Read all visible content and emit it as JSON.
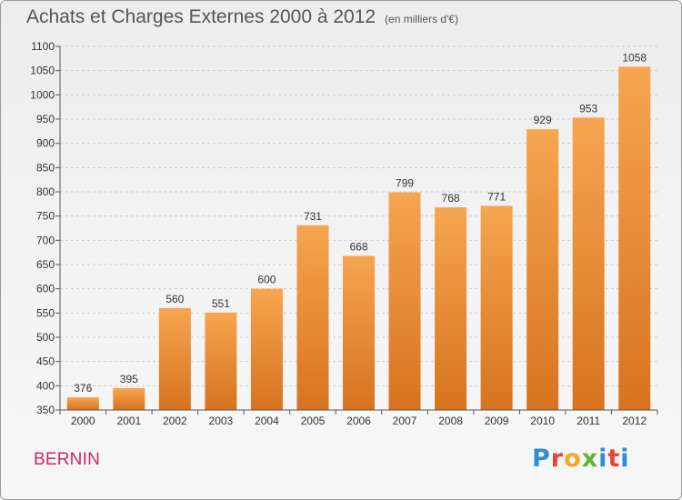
{
  "header": {
    "title": "Achats et Charges Externes 2000 à 2012",
    "subtitle": "(en milliers d'€)"
  },
  "commune": "BERNIN",
  "logo": {
    "text": "Proxiti",
    "letter_colors": [
      "#2e8ed3",
      "#e6443a",
      "#f5a623",
      "#5bb53c",
      "#2e8ed3",
      "#e6443a",
      "#2e8ed3"
    ]
  },
  "colors": {
    "bar_top": "#f6a550",
    "bar_bottom": "#d7731f",
    "axis_text": "#333333",
    "grid": "#cccccc"
  },
  "chart_data": {
    "type": "bar",
    "categories": [
      "2000",
      "2001",
      "2002",
      "2003",
      "2004",
      "2005",
      "2006",
      "2007",
      "2008",
      "2009",
      "2010",
      "2011",
      "2012"
    ],
    "values": [
      376,
      395,
      560,
      551,
      600,
      731,
      668,
      799,
      768,
      771,
      929,
      953,
      1058
    ],
    "data_labels": [
      "376",
      "395",
      "560",
      "551",
      "600",
      "731",
      "668",
      "799",
      "768",
      "771",
      "929",
      "953",
      "1058"
    ],
    "yticks": [
      350,
      400,
      450,
      500,
      550,
      600,
      650,
      700,
      750,
      800,
      850,
      900,
      950,
      1000,
      1050,
      1100
    ],
    "ylim": [
      350,
      1100
    ],
    "title": "Achats et Charges Externes 2000 à 2012",
    "xlabel": "",
    "ylabel": "",
    "grid": "horizontal dashed",
    "legend": "none"
  }
}
